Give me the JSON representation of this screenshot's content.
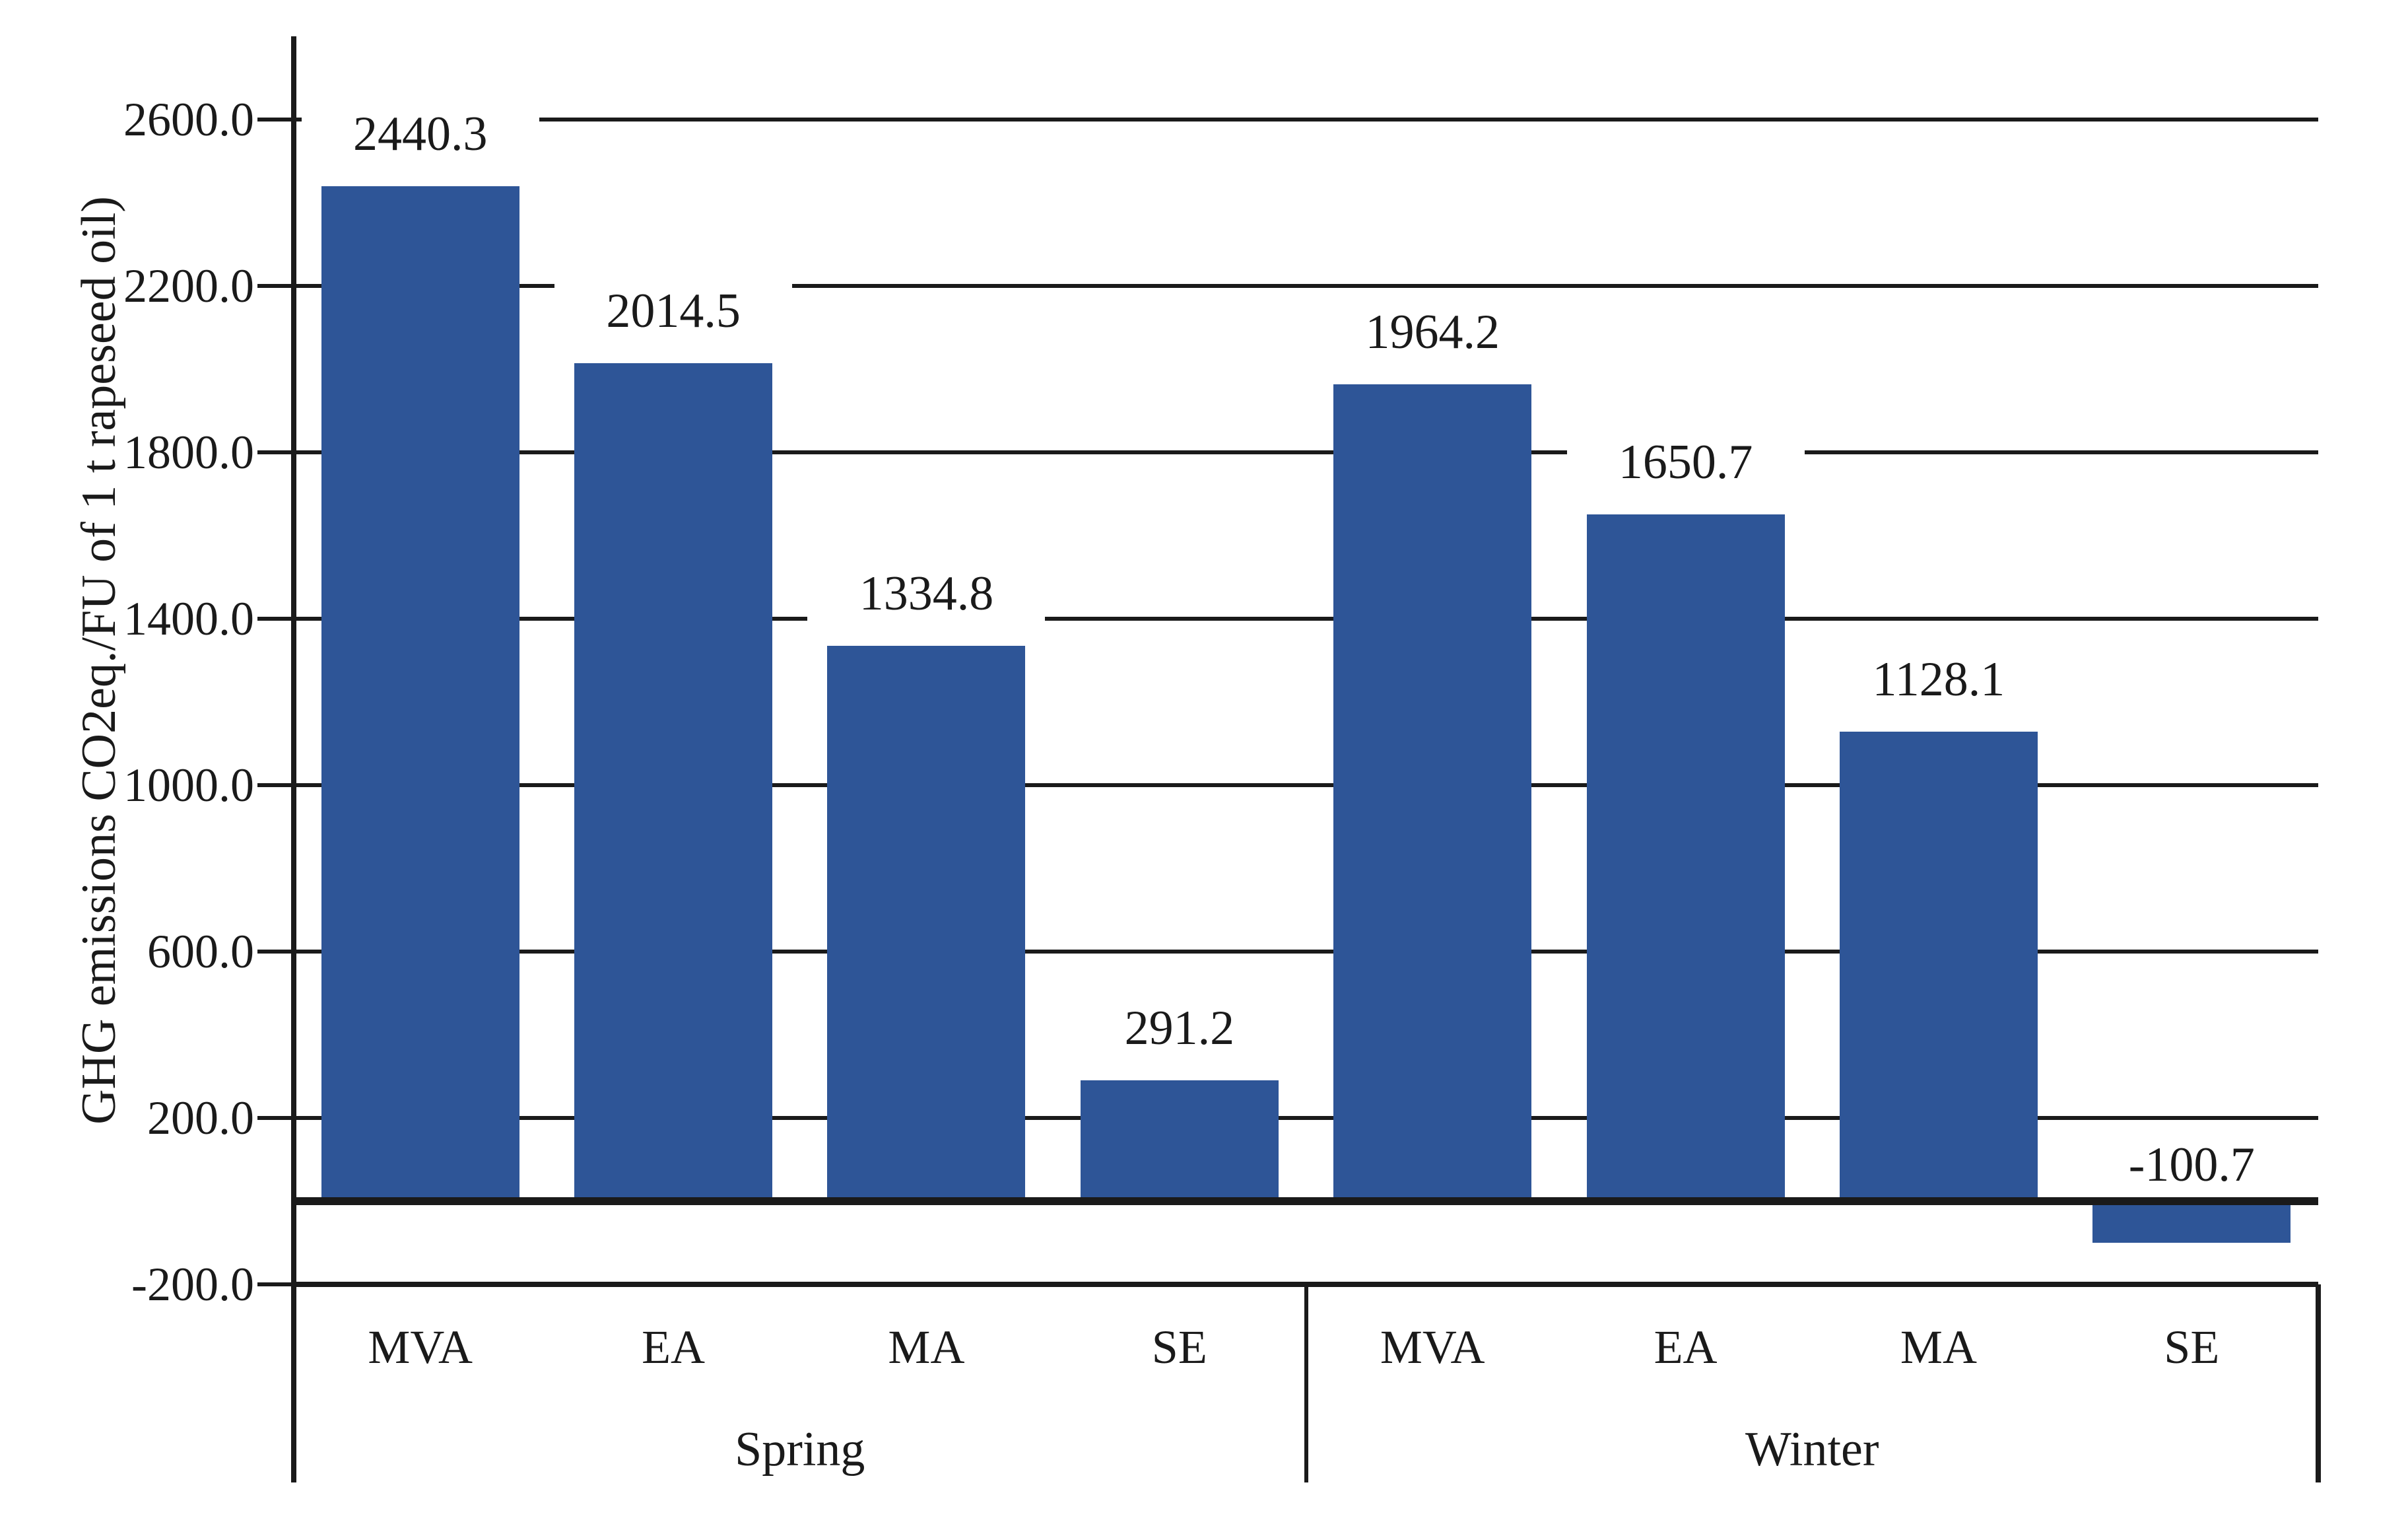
{
  "chart_data": {
    "type": "bar",
    "title": "",
    "ylabel": "GHG emissions CO2eq./FU of 1 t rapeseed oil)",
    "xlabel": "",
    "categories": [
      "MVA",
      "EA",
      "MA",
      "SE",
      "MVA",
      "EA",
      "MA",
      "SE"
    ],
    "groups": [
      {
        "label": "Spring",
        "start": 0,
        "end": 3
      },
      {
        "label": "Winter",
        "start": 4,
        "end": 7
      }
    ],
    "series": [
      {
        "name": "GHG emissions CO2eq. per FU",
        "values": [
          2440.3,
          2014.5,
          1334.8,
          291.2,
          1964.2,
          1650.7,
          1128.1,
          -100.7
        ],
        "value_labels": [
          "2440.3",
          "2014.5",
          "1334.8",
          "291.2",
          "1964.2",
          "1650.7",
          "1128.1",
          "-100.7"
        ]
      }
    ],
    "ytick_values": [
      2600,
      2200,
      1800,
      1400,
      1000,
      600,
      200,
      -200
    ],
    "ytick_labels": [
      "2600.0",
      "2200.0",
      "1800.0",
      "1400.0",
      "1000.0",
      "600.0",
      "200.0",
      "-200.0"
    ],
    "ylim": [
      -200,
      2800
    ],
    "grid": true,
    "legend": "none",
    "bar_color": "#2E5597",
    "axis_color": "#1a1a1a",
    "text_color": "#1a1a1a",
    "background_color": "#ffffff"
  }
}
